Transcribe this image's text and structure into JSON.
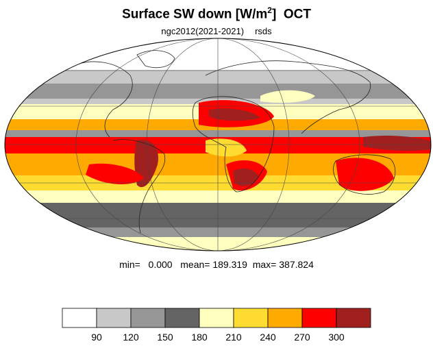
{
  "title": {
    "main": "Surface SW down [W/m",
    "sup": "2",
    "close": "]",
    "period": "OCT"
  },
  "subtitle": {
    "model": "ngc2012(2021-2021)",
    "variable": "rsds"
  },
  "stats": {
    "min_label": "min=",
    "min": "0.000",
    "mean_label": "mean=",
    "mean": "189.319",
    "max_label": "max=",
    "max": "387.824"
  },
  "colorbar": {
    "colors": [
      "#ffffff",
      "#c8c8c8",
      "#969696",
      "#646464",
      "#ffffc0",
      "#ffdc32",
      "#ffaa00",
      "#ff0000",
      "#a02020"
    ],
    "labels": [
      "90",
      "120",
      "150",
      "180",
      "210",
      "240",
      "270",
      "300"
    ]
  },
  "map": {
    "projection": "mollweide",
    "grid": true,
    "coastlines": true,
    "background": "#ffdc32"
  }
}
